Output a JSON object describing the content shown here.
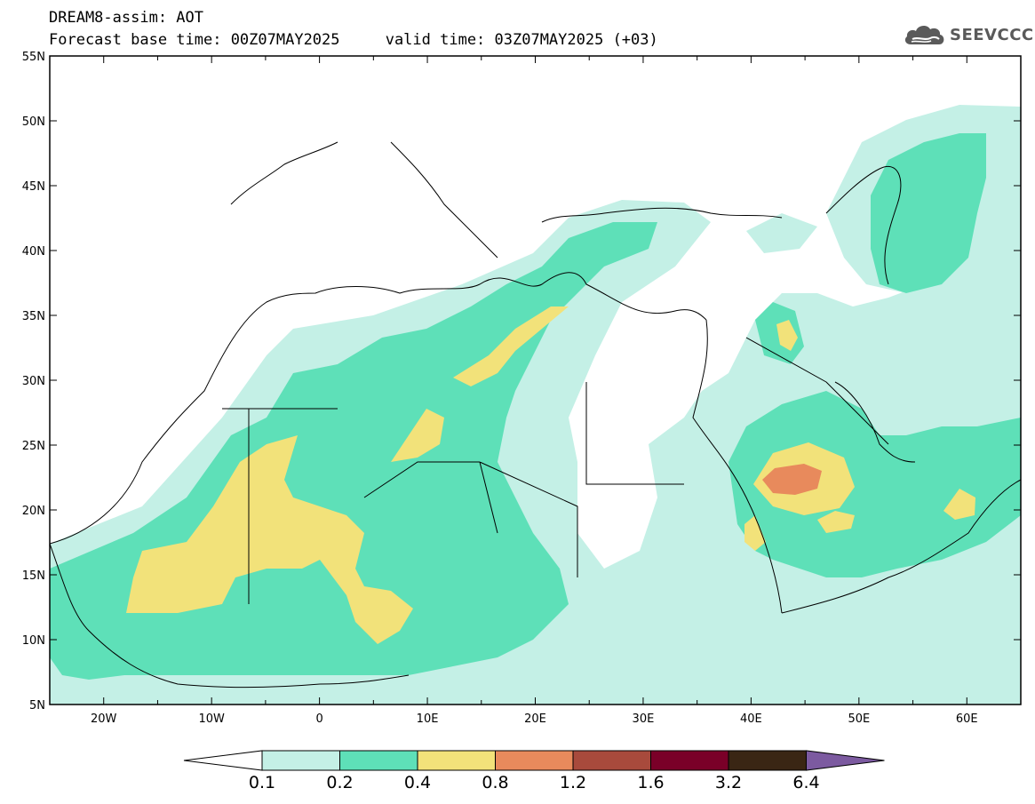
{
  "header": {
    "model_title": "DREAM8-assim: AOT",
    "base_time_label": "Forecast base time: 00Z07MAY2025",
    "valid_time_label": "valid time: 03Z07MAY2025 (+03)"
  },
  "logo": {
    "text": "SEEVCCC",
    "icon": "cloud-icon"
  },
  "map": {
    "lon_range": [
      -25,
      65
    ],
    "lat_range": [
      5,
      55
    ],
    "lat_ticks": [
      "55N",
      "50N",
      "45N",
      "40N",
      "35N",
      "30N",
      "25N",
      "20N",
      "15N",
      "10N",
      "5N"
    ],
    "lon_ticks": [
      "20W",
      "10W",
      "0",
      "10E",
      "20E",
      "30E",
      "40E",
      "50E",
      "60E"
    ]
  },
  "legend": {
    "levels": [
      "0.1",
      "0.2",
      "0.4",
      "0.8",
      "1.2",
      "1.6",
      "3.2",
      "6.4"
    ],
    "colors": [
      "#ffffff",
      "#c4f0e6",
      "#5ee0b8",
      "#f2e27a",
      "#e88a5c",
      "#a84a3c",
      "#7a0028",
      "#3a2614",
      "#7c5aa0"
    ]
  }
}
